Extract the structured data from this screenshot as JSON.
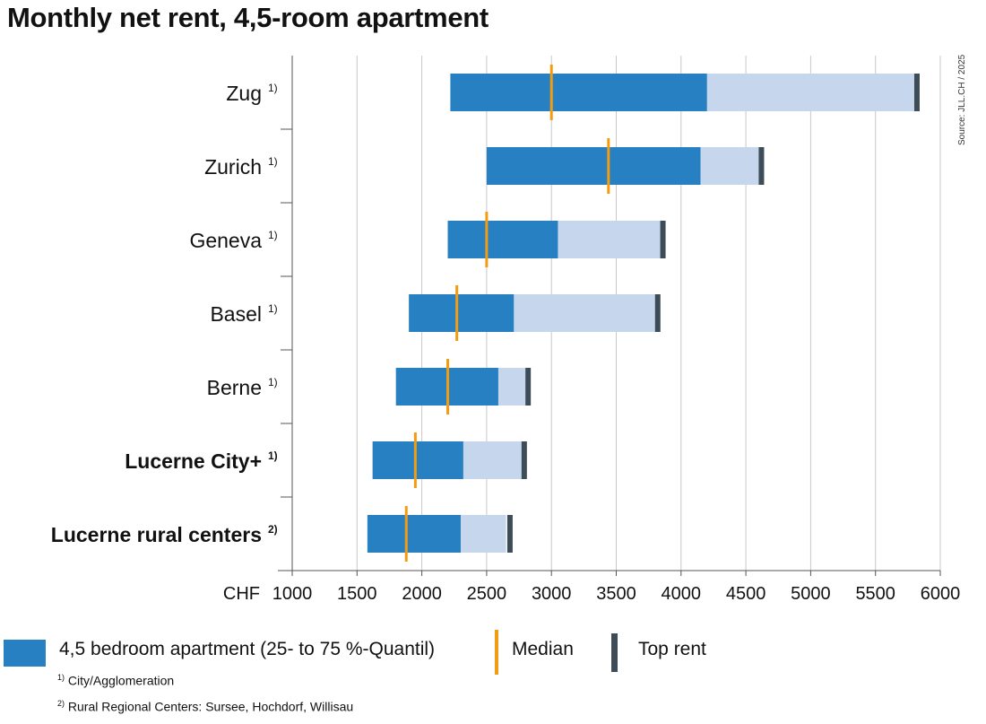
{
  "title": "Monthly net rent, 4,5-room apartment",
  "source": "Source: JLL.CH / 2025",
  "colors": {
    "quantile": "#2680c2",
    "upper": "#c6d6ec",
    "median": "#f39c12",
    "top": "#3d4c56",
    "grid": "#c8c8c8",
    "axis": "#555555"
  },
  "chart_data": {
    "type": "bar",
    "orientation": "horizontal",
    "title": "Monthly net rent, 4,5-room apartment",
    "xlabel": "CHF",
    "xlim": [
      1000,
      6000
    ],
    "xticks": [
      1000,
      1500,
      2000,
      2500,
      3000,
      3500,
      4000,
      4500,
      5000,
      5500,
      6000
    ],
    "grid": true,
    "categories": [
      {
        "label": "Zug",
        "note": "1)",
        "bold": false
      },
      {
        "label": "Zurich",
        "note": "1)",
        "bold": false
      },
      {
        "label": "Geneva",
        "note": "1)",
        "bold": false
      },
      {
        "label": "Basel",
        "note": "1)",
        "bold": false
      },
      {
        "label": "Berne",
        "note": "1)",
        "bold": false
      },
      {
        "label": "Lucerne City+",
        "note": "1)",
        "bold": true
      },
      {
        "label": "Lucerne rural centers",
        "note": "2)",
        "bold": true
      }
    ],
    "series": [
      {
        "name": "4,5 bedroom apartment (25- to 75 %-Quantil)",
        "q25": [
          2220,
          2500,
          2200,
          1900,
          1800,
          1620,
          1580
        ],
        "q75": [
          4200,
          4150,
          3050,
          2710,
          2590,
          2320,
          2300
        ]
      },
      {
        "name": "Median",
        "values": [
          3000,
          3440,
          2500,
          2270,
          2200,
          1950,
          1880
        ]
      },
      {
        "name": "Top rent",
        "values": [
          5820,
          4620,
          3860,
          3820,
          2820,
          2790,
          2680
        ]
      }
    ],
    "upper_range_end": [
      5820,
      4600,
      3840,
      3800,
      2800,
      2770,
      2650
    ]
  },
  "legend": {
    "quantile": "4,5 bedroom apartment (25- to 75 %-Quantil)",
    "median": "Median",
    "top": "Top rent"
  },
  "footnotes": [
    {
      "mark": "1)",
      "text": "City/Agglomeration"
    },
    {
      "mark": "2)",
      "text": "Rural Regional Centers: Sursee, Hochdorf, Willisau"
    }
  ]
}
